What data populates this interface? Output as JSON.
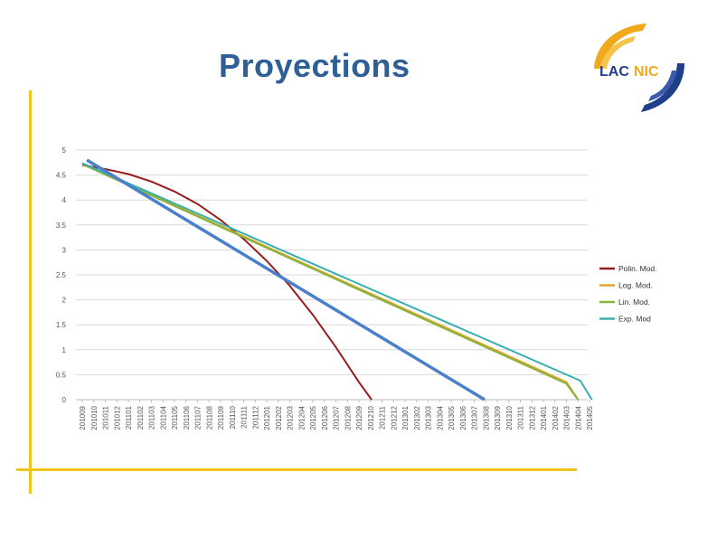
{
  "header": {
    "title": "Proyections"
  },
  "logo": {
    "text_lac": "LAC",
    "text_nic": "NIC",
    "icon": "lacnic-logo-icon"
  },
  "colors": {
    "accent": "#f0c419",
    "title": "#2e5f95",
    "polin": "#9b1c1c",
    "log": "#e2a52a",
    "lin": "#8db23c",
    "exp": "#3aafaf",
    "trend": "#4a7fc9",
    "grid": "#d9d9d9"
  },
  "chart_data": {
    "type": "line",
    "title": "",
    "xlabel": "",
    "ylabel": "",
    "ylim": [
      0,
      5
    ],
    "yticks": [
      "0",
      "0.5",
      "1",
      "1.5",
      "2",
      "2.5",
      "3",
      "3.5",
      "4",
      "4.5",
      "5"
    ],
    "categories": [
      "201009",
      "201010",
      "201011",
      "201012",
      "201101",
      "201102",
      "201103",
      "201104",
      "201105",
      "201106",
      "201107",
      "201108",
      "201109",
      "201110",
      "201111",
      "201112",
      "201201",
      "201202",
      "201203",
      "201204",
      "201205",
      "201206",
      "201207",
      "201208",
      "201209",
      "201210",
      "201211",
      "201212",
      "201301",
      "201302",
      "201303",
      "201304",
      "201305",
      "201306",
      "201307",
      "201308",
      "201309",
      "201310",
      "201311",
      "201312",
      "201401",
      "201402",
      "201403",
      "201404",
      "201405"
    ],
    "grid": "horizontal",
    "legend_position": "right",
    "legend": [
      "Polin. Mod.",
      "Log. Mod.",
      "Lin. Mod.",
      "Exp. Mod"
    ],
    "series": [
      {
        "name": "Polin. Mod.",
        "color": "#9b1c1c",
        "points": [
          [
            0,
            4.7
          ],
          [
            2,
            4.62
          ],
          [
            4,
            4.52
          ],
          [
            6,
            4.37
          ],
          [
            8,
            4.17
          ],
          [
            10,
            3.92
          ],
          [
            12,
            3.6
          ],
          [
            14,
            3.22
          ],
          [
            16,
            2.78
          ],
          [
            18,
            2.28
          ],
          [
            20,
            1.7
          ],
          [
            22,
            1.05
          ],
          [
            24,
            0.35
          ],
          [
            25.1,
            0
          ]
        ]
      },
      {
        "name": "Log. Mod.",
        "color": "#e2a52a",
        "points": [
          [
            0,
            4.73
          ],
          [
            42,
            0.35
          ],
          [
            43,
            0
          ]
        ]
      },
      {
        "name": "Lin. Mod.",
        "color": "#8db23c",
        "points": [
          [
            0,
            4.72
          ],
          [
            42,
            0.32
          ],
          [
            43,
            0
          ]
        ]
      },
      {
        "name": "Exp. Mod",
        "color": "#3aafaf",
        "points": [
          [
            0,
            4.74
          ],
          [
            43.2,
            0.38
          ],
          [
            44.2,
            0
          ]
        ]
      },
      {
        "name": "",
        "color": "#4a7fc9",
        "points": [
          [
            0.4,
            4.8
          ],
          [
            34.9,
            0
          ]
        ]
      }
    ]
  }
}
